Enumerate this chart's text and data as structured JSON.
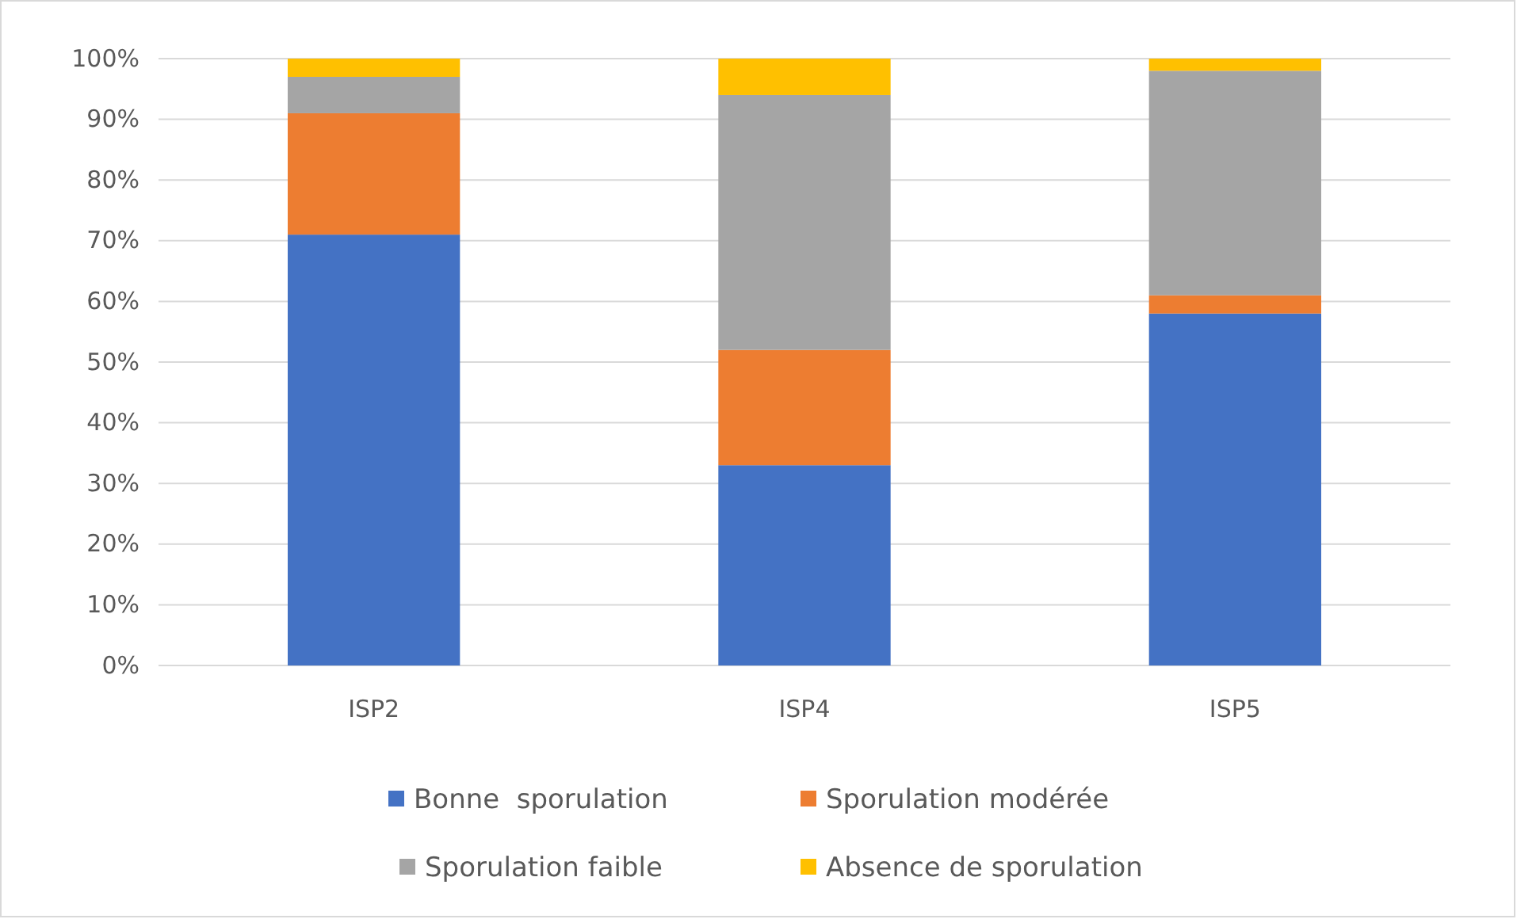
{
  "chart_data": {
    "type": "bar",
    "stacked": true,
    "categories": [
      "ISP2",
      "ISP4",
      "ISP5"
    ],
    "series": [
      {
        "name": "Bonne  sporulation",
        "color": "#4472c4",
        "values": [
          71,
          33,
          58
        ]
      },
      {
        "name": "Sporulation modérée",
        "color": "#ed7d31",
        "values": [
          20,
          19,
          3
        ]
      },
      {
        "name": "Sporulation faible",
        "color": "#a5a5a5",
        "values": [
          6,
          42,
          37
        ]
      },
      {
        "name": "Absence de sporulation",
        "color": "#ffc000",
        "values": [
          3,
          6,
          2
        ]
      }
    ],
    "ylim": [
      0,
      100
    ],
    "yticks": [
      {
        "value": 0,
        "label": "0%"
      },
      {
        "value": 10,
        "label": "10%"
      },
      {
        "value": 20,
        "label": "20%"
      },
      {
        "value": 30,
        "label": "30%"
      },
      {
        "value": 40,
        "label": "40%"
      },
      {
        "value": 50,
        "label": "50%"
      },
      {
        "value": 60,
        "label": "60%"
      },
      {
        "value": 70,
        "label": "70%"
      },
      {
        "value": 80,
        "label": "80%"
      },
      {
        "value": 90,
        "label": "90%"
      },
      {
        "value": 100,
        "label": "100%"
      }
    ],
    "grid": "y",
    "legend": "bottom"
  }
}
